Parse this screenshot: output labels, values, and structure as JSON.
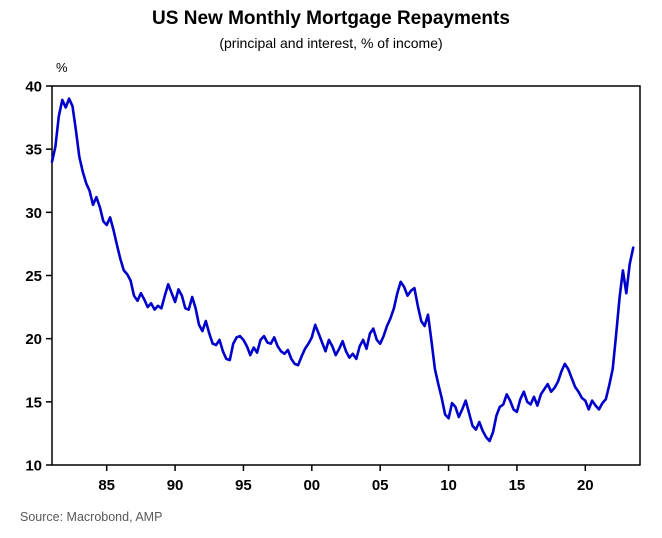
{
  "chart_data": {
    "type": "line",
    "title": "US New Monthly Mortgage Repayments",
    "subtitle": "(principal and interest, % of income)",
    "ylabel": "%",
    "source": "Source: Macrobond, AMP",
    "line_color": "#0000cc",
    "grid": false,
    "legend": "none",
    "xlim": [
      1981,
      2024
    ],
    "ylim": [
      10,
      40
    ],
    "y_ticks": [
      10,
      15,
      20,
      25,
      30,
      35,
      40
    ],
    "x_ticks": [
      {
        "x": 1985,
        "label": "85"
      },
      {
        "x": 1990,
        "label": "90"
      },
      {
        "x": 1995,
        "label": "95"
      },
      {
        "x": 2000,
        "label": "00"
      },
      {
        "x": 2005,
        "label": "05"
      },
      {
        "x": 2010,
        "label": "10"
      },
      {
        "x": 2015,
        "label": "15"
      },
      {
        "x": 2020,
        "label": "20"
      }
    ],
    "x_start": 1981,
    "x_step": 0.25,
    "values": [
      34.0,
      35.2,
      37.6,
      38.9,
      38.3,
      39.0,
      38.4,
      36.5,
      34.4,
      33.2,
      32.3,
      31.7,
      30.6,
      31.2,
      30.4,
      29.3,
      29.0,
      29.6,
      28.6,
      27.4,
      26.3,
      25.4,
      25.1,
      24.6,
      23.4,
      23.0,
      23.6,
      23.1,
      22.5,
      22.8,
      22.3,
      22.6,
      22.4,
      23.4,
      24.3,
      23.6,
      22.9,
      23.9,
      23.4,
      22.4,
      22.3,
      23.3,
      22.4,
      21.1,
      20.6,
      21.4,
      20.4,
      19.6,
      19.5,
      19.9,
      19.0,
      18.4,
      18.3,
      19.6,
      20.1,
      20.2,
      19.9,
      19.4,
      18.7,
      19.3,
      18.9,
      19.9,
      20.2,
      19.7,
      19.6,
      20.1,
      19.4,
      19.0,
      18.8,
      19.1,
      18.4,
      18.0,
      17.9,
      18.6,
      19.2,
      19.6,
      20.1,
      21.1,
      20.4,
      19.7,
      19.0,
      19.9,
      19.4,
      18.7,
      19.2,
      19.8,
      19.0,
      18.5,
      18.8,
      18.4,
      19.4,
      19.9,
      19.2,
      20.4,
      20.8,
      19.9,
      19.6,
      20.2,
      21.0,
      21.6,
      22.4,
      23.6,
      24.5,
      24.1,
      23.4,
      23.8,
      24.0,
      22.6,
      21.4,
      21.0,
      21.9,
      19.8,
      17.6,
      16.4,
      15.3,
      14.0,
      13.7,
      14.9,
      14.6,
      13.8,
      14.4,
      15.1,
      14.1,
      13.1,
      12.8,
      13.4,
      12.7,
      12.2,
      11.9,
      12.6,
      13.9,
      14.6,
      14.8,
      15.6,
      15.1,
      14.4,
      14.2,
      15.2,
      15.8,
      15.0,
      14.8,
      15.4,
      14.7,
      15.6,
      16.0,
      16.4,
      15.8,
      16.1,
      16.6,
      17.4,
      18.0,
      17.6,
      16.9,
      16.2,
      15.8,
      15.3,
      15.1,
      14.4,
      15.1,
      14.7,
      14.4,
      14.9,
      15.2,
      16.3,
      17.6,
      20.3,
      23.2,
      25.4,
      23.6,
      25.9,
      27.2
    ]
  }
}
